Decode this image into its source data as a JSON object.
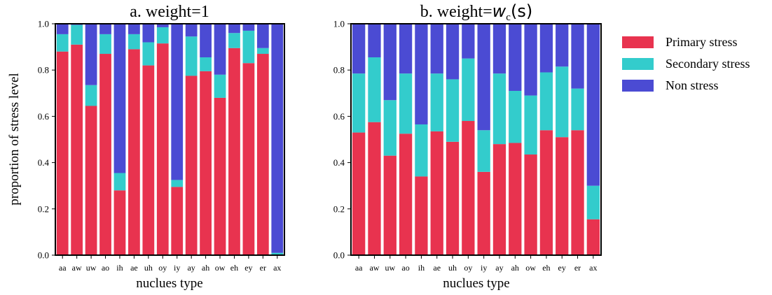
{
  "chart_data": [
    {
      "type": "bar",
      "stacked": true,
      "title": "a. weight=1",
      "xlabel": "nuclues type",
      "ylabel": "proportion of stress level",
      "ylim": [
        0,
        1.0
      ],
      "yticks": [
        "0.0",
        "0.2",
        "0.4",
        "0.6",
        "0.8",
        "1.0"
      ],
      "categories": [
        "aa",
        "aw",
        "uw",
        "ao",
        "ih",
        "ae",
        "uh",
        "oy",
        "iy",
        "ay",
        "ah",
        "ow",
        "eh",
        "ey",
        "er",
        "ax"
      ],
      "series": [
        {
          "name": "Primary stress",
          "color": "#e8334f",
          "values": [
            0.88,
            0.91,
            0.645,
            0.87,
            0.28,
            0.89,
            0.82,
            0.915,
            0.295,
            0.775,
            0.795,
            0.68,
            0.895,
            0.83,
            0.87,
            0.0
          ]
        },
        {
          "name": "Secondary stress",
          "color": "#33cccc",
          "values": [
            0.075,
            0.085,
            0.09,
            0.085,
            0.075,
            0.065,
            0.1,
            0.07,
            0.03,
            0.17,
            0.06,
            0.1,
            0.065,
            0.14,
            0.025,
            0.01
          ]
        },
        {
          "name": "Non stress",
          "color": "#4b4bd3",
          "values": [
            0.045,
            0.005,
            0.265,
            0.045,
            0.645,
            0.045,
            0.08,
            0.015,
            0.675,
            0.055,
            0.145,
            0.22,
            0.04,
            0.03,
            0.105,
            0.99
          ]
        }
      ]
    },
    {
      "type": "bar",
      "stacked": true,
      "title_prefix": "b. weight=",
      "title_math": "w",
      "title_sub": "c",
      "title_suffix": "(s)",
      "xlabel": "nuclues type",
      "ylim": [
        0,
        1.0
      ],
      "yticks": [
        "0.0",
        "0.2",
        "0.4",
        "0.6",
        "0.8",
        "1.0"
      ],
      "categories": [
        "aa",
        "aw",
        "uw",
        "ao",
        "ih",
        "ae",
        "uh",
        "oy",
        "iy",
        "ay",
        "ah",
        "ow",
        "eh",
        "ey",
        "er",
        "ax"
      ],
      "series": [
        {
          "name": "Primary stress",
          "color": "#e8334f",
          "values": [
            0.53,
            0.575,
            0.43,
            0.525,
            0.34,
            0.535,
            0.49,
            0.58,
            0.36,
            0.48,
            0.485,
            0.435,
            0.54,
            0.51,
            0.54,
            0.155
          ]
        },
        {
          "name": "Secondary stress",
          "color": "#33cccc",
          "values": [
            0.255,
            0.28,
            0.24,
            0.26,
            0.225,
            0.25,
            0.27,
            0.27,
            0.18,
            0.305,
            0.225,
            0.255,
            0.25,
            0.305,
            0.18,
            0.145
          ]
        },
        {
          "name": "Non stress",
          "color": "#4b4bd3",
          "values": [
            0.215,
            0.145,
            0.33,
            0.215,
            0.435,
            0.215,
            0.24,
            0.15,
            0.46,
            0.215,
            0.29,
            0.31,
            0.21,
            0.185,
            0.28,
            0.7
          ]
        }
      ]
    }
  ],
  "legend": {
    "placement": "right",
    "items": [
      {
        "label": "Primary stress",
        "color": "#e8334f"
      },
      {
        "label": "Secondary stress",
        "color": "#33cccc"
      },
      {
        "label": "Non stress",
        "color": "#4b4bd3"
      }
    ]
  }
}
